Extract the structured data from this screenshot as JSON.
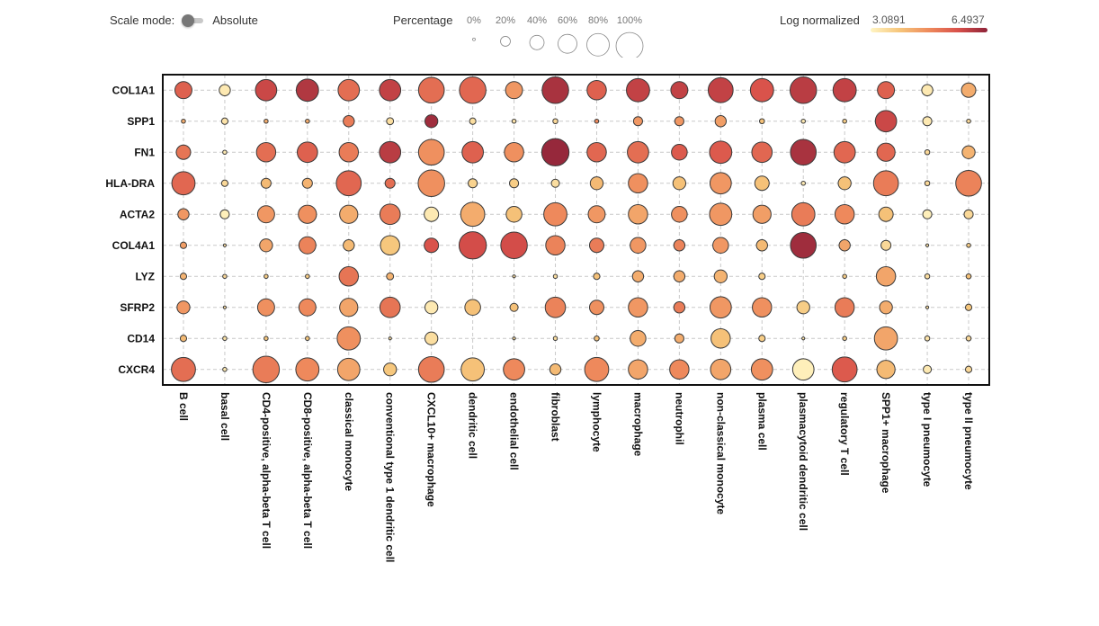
{
  "header": {
    "scale_mode_label": "Scale mode:",
    "scale_mode_value": "Absolute",
    "percentage_label": "Percentage",
    "log_label": "Log normalized",
    "log_min": "3.0891",
    "log_max": "6.4937"
  },
  "colors": {
    "low": "#fff5c4",
    "mid1": "#f6c57a",
    "mid2": "#ee8a5c",
    "mid3": "#d8504a",
    "high": "#8e2339"
  },
  "chart_data": {
    "type": "dot-plot",
    "size_legend": [
      "0%",
      "20%",
      "40%",
      "60%",
      "80%",
      "100%"
    ],
    "color_range": [
      3.0891,
      6.4937
    ],
    "genes": [
      "COL1A1",
      "SPP1",
      "FN1",
      "HLA-DRA",
      "ACTA2",
      "COL4A1",
      "LYZ",
      "SFRP2",
      "CD14",
      "CXCR4"
    ],
    "cell_types": [
      "B cell",
      "basal cell",
      "CD4-positive, alpha-beta T cell",
      "CD8-positive, alpha-beta T cell",
      "classical monocyte",
      "conventional type 1 dendritic cell",
      "CXCL10+ macrophage",
      "dendritic cell",
      "endothelial cell",
      "fibroblast",
      "lymphocyte",
      "macrophage",
      "neutrophil",
      "non-classical monocyte",
      "plasma cell",
      "plasmacytoid dendritic cell",
      "regulatory T cell",
      "SPP1+ macrophage",
      "type I pneumocyte",
      "type II pneumocyte"
    ],
    "percent": [
      [
        0.35,
        0.15,
        0.55,
        0.6,
        0.55,
        0.55,
        0.8,
        0.85,
        0.35,
        0.85,
        0.45,
        0.65,
        0.35,
        0.75,
        0.65,
        0.85,
        0.65,
        0.35,
        0.15,
        0.25
      ],
      [
        0.02,
        0.05,
        0.02,
        0.02,
        0.15,
        0.06,
        0.2,
        0.05,
        0.02,
        0.03,
        0.02,
        0.1,
        0.1,
        0.15,
        0.03,
        0.02,
        0.02,
        0.55,
        0.1,
        0.02
      ],
      [
        0.25,
        0.02,
        0.45,
        0.5,
        0.45,
        0.55,
        0.8,
        0.55,
        0.45,
        0.9,
        0.45,
        0.55,
        0.3,
        0.6,
        0.5,
        0.8,
        0.55,
        0.4,
        0.03,
        0.2
      ],
      [
        0.65,
        0.05,
        0.12,
        0.12,
        0.75,
        0.12,
        0.85,
        0.1,
        0.1,
        0.08,
        0.2,
        0.45,
        0.2,
        0.55,
        0.25,
        0.02,
        0.2,
        0.75,
        0.03,
        0.8
      ],
      [
        0.15,
        0.1,
        0.35,
        0.4,
        0.4,
        0.5,
        0.25,
        0.7,
        0.3,
        0.65,
        0.35,
        0.45,
        0.3,
        0.6,
        0.4,
        0.65,
        0.45,
        0.25,
        0.1,
        0.1
      ],
      [
        0.05,
        0.01,
        0.2,
        0.35,
        0.15,
        0.45,
        0.25,
        0.9,
        0.85,
        0.45,
        0.25,
        0.3,
        0.15,
        0.3,
        0.15,
        0.8,
        0.15,
        0.12,
        0.01,
        0.02
      ],
      [
        0.05,
        0.02,
        0.02,
        0.02,
        0.45,
        0.06,
        0.0,
        0.0,
        0.01,
        0.02,
        0.05,
        0.15,
        0.15,
        0.2,
        0.05,
        0.0,
        0.02,
        0.45,
        0.03,
        0.03
      ],
      [
        0.2,
        0.01,
        0.35,
        0.35,
        0.4,
        0.5,
        0.2,
        0.3,
        0.08,
        0.5,
        0.25,
        0.45,
        0.15,
        0.55,
        0.45,
        0.2,
        0.45,
        0.2,
        0.01,
        0.05
      ],
      [
        0.05,
        0.02,
        0.02,
        0.02,
        0.65,
        0.01,
        0.2,
        0.0,
        0.01,
        0.02,
        0.03,
        0.3,
        0.1,
        0.45,
        0.05,
        0.01,
        0.02,
        0.65,
        0.03,
        0.03
      ],
      [
        0.7,
        0.02,
        0.85,
        0.65,
        0.6,
        0.2,
        0.8,
        0.65,
        0.55,
        0.15,
        0.7,
        0.45,
        0.45,
        0.5,
        0.55,
        0.55,
        0.75,
        0.4,
        0.08,
        0.05
      ]
    ],
    "expression": [
      [
        5.4,
        3.3,
        5.8,
        6.1,
        5.2,
        5.9,
        5.2,
        5.3,
        4.6,
        6.2,
        5.4,
        5.9,
        5.9,
        5.9,
        5.6,
        6.0,
        5.9,
        5.4,
        3.3,
        4.3
      ],
      [
        4.3,
        3.4,
        4.3,
        4.3,
        5.0,
        3.5,
        6.3,
        3.5,
        3.4,
        3.6,
        4.8,
        4.6,
        4.6,
        4.5,
        4.0,
        3.3,
        3.8,
        5.8,
        3.3,
        3.6
      ],
      [
        5.1,
        3.3,
        5.2,
        5.4,
        5.0,
        6.0,
        4.7,
        5.4,
        4.7,
        6.4,
        5.3,
        5.2,
        5.5,
        5.5,
        5.3,
        6.2,
        5.3,
        5.3,
        3.6,
        4.2
      ],
      [
        5.3,
        3.6,
        4.1,
        4.2,
        5.3,
        5.2,
        4.7,
        3.7,
        3.8,
        3.5,
        4.1,
        4.7,
        4.0,
        4.6,
        4.0,
        3.3,
        4.0,
        5.0,
        3.6,
        4.9
      ],
      [
        4.6,
        3.2,
        4.6,
        4.7,
        4.3,
        5.0,
        3.3,
        4.3,
        4.0,
        4.8,
        4.6,
        4.4,
        4.7,
        4.6,
        4.5,
        5.0,
        4.8,
        4.0,
        3.2,
        3.6
      ],
      [
        4.5,
        3.5,
        4.4,
        4.9,
        4.1,
        3.9,
        5.6,
        5.7,
        5.7,
        4.9,
        5.0,
        4.6,
        4.9,
        4.6,
        4.1,
        6.3,
        4.4,
        3.6,
        3.5,
        3.8
      ],
      [
        4.2,
        3.6,
        3.8,
        3.8,
        5.1,
        4.2,
        0,
        0,
        3.5,
        3.5,
        4.0,
        4.3,
        4.3,
        4.2,
        3.8,
        0,
        3.8,
        4.4,
        3.5,
        4.0
      ],
      [
        4.6,
        3.5,
        4.7,
        4.8,
        4.4,
        5.1,
        3.3,
        4.0,
        4.0,
        4.9,
        4.7,
        4.6,
        5.0,
        4.6,
        4.7,
        3.8,
        5.0,
        4.3,
        3.5,
        3.9
      ],
      [
        4.1,
        3.4,
        3.9,
        3.9,
        4.7,
        3.5,
        3.5,
        0,
        3.5,
        3.5,
        4.0,
        4.3,
        4.3,
        4.0,
        3.8,
        3.4,
        3.8,
        4.4,
        3.4,
        3.6
      ],
      [
        5.2,
        3.3,
        5.0,
        4.8,
        4.4,
        3.9,
        5.0,
        4.0,
        4.8,
        4.1,
        4.8,
        4.4,
        4.8,
        4.4,
        4.7,
        3.2,
        5.5,
        4.1,
        3.3,
        3.6
      ]
    ]
  }
}
